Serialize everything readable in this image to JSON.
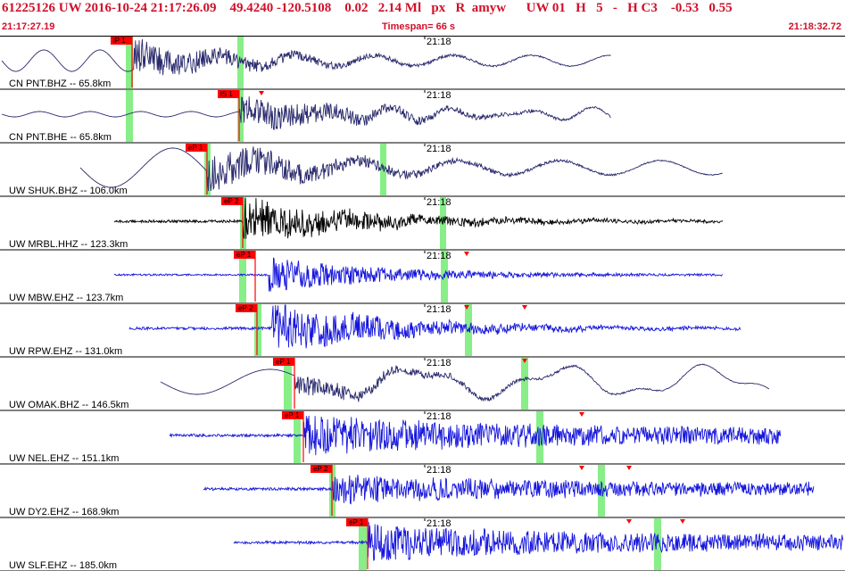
{
  "header": {
    "title": "61225126 UW 2016-10-24 21:17:26.09    49.4240 -120.5108    0.02   2.14 Ml   px   R  amyw      UW 01   H   5   -   H C3    -0.53   0.55",
    "start_time": "21:17:27.19",
    "timespan": "Timespan=  66 s",
    "end_time": "21:18:32.72"
  },
  "colors": {
    "header_red": "#d0102a",
    "pick_red": "#ff0000",
    "window_green": "#88ee88",
    "trace_navy": "#2a2a6e",
    "trace_blue": "#1515dd",
    "trace_black": "#000000"
  },
  "minute_label": "21:18",
  "traces": [
    {
      "label": "CN PNT.BHZ -- 65.8km",
      "pick": "iP 1",
      "color": "navy"
    },
    {
      "label": "CN PNT.BHE -- 65.8km",
      "pick": "iS 1",
      "color": "navy"
    },
    {
      "label": "UW SHUK.BHZ -- 106.0km",
      "pick": "eP 1",
      "color": "navy"
    },
    {
      "label": "UW MRBL.HHZ -- 123.3km",
      "pick": "eP 2",
      "color": "black"
    },
    {
      "label": "UW MBW.EHZ -- 123.7km",
      "pick": "eP 1",
      "color": "blue"
    },
    {
      "label": "UW RPW.EHZ -- 131.0km",
      "pick": "eP 2",
      "color": "blue"
    },
    {
      "label": "UW OMAK.BHZ -- 146.5km",
      "pick": "eP 1",
      "color": "navy"
    },
    {
      "label": "UW NEL.EHZ -- 151.1km",
      "pick": "eP 1",
      "color": "blue"
    },
    {
      "label": "UW DY2.EHZ -- 168.9km",
      "pick": "eP 2",
      "color": "blue"
    },
    {
      "label": "UW SLF.EHZ -- 185.0km",
      "pick": "eP 1",
      "color": "blue"
    }
  ]
}
